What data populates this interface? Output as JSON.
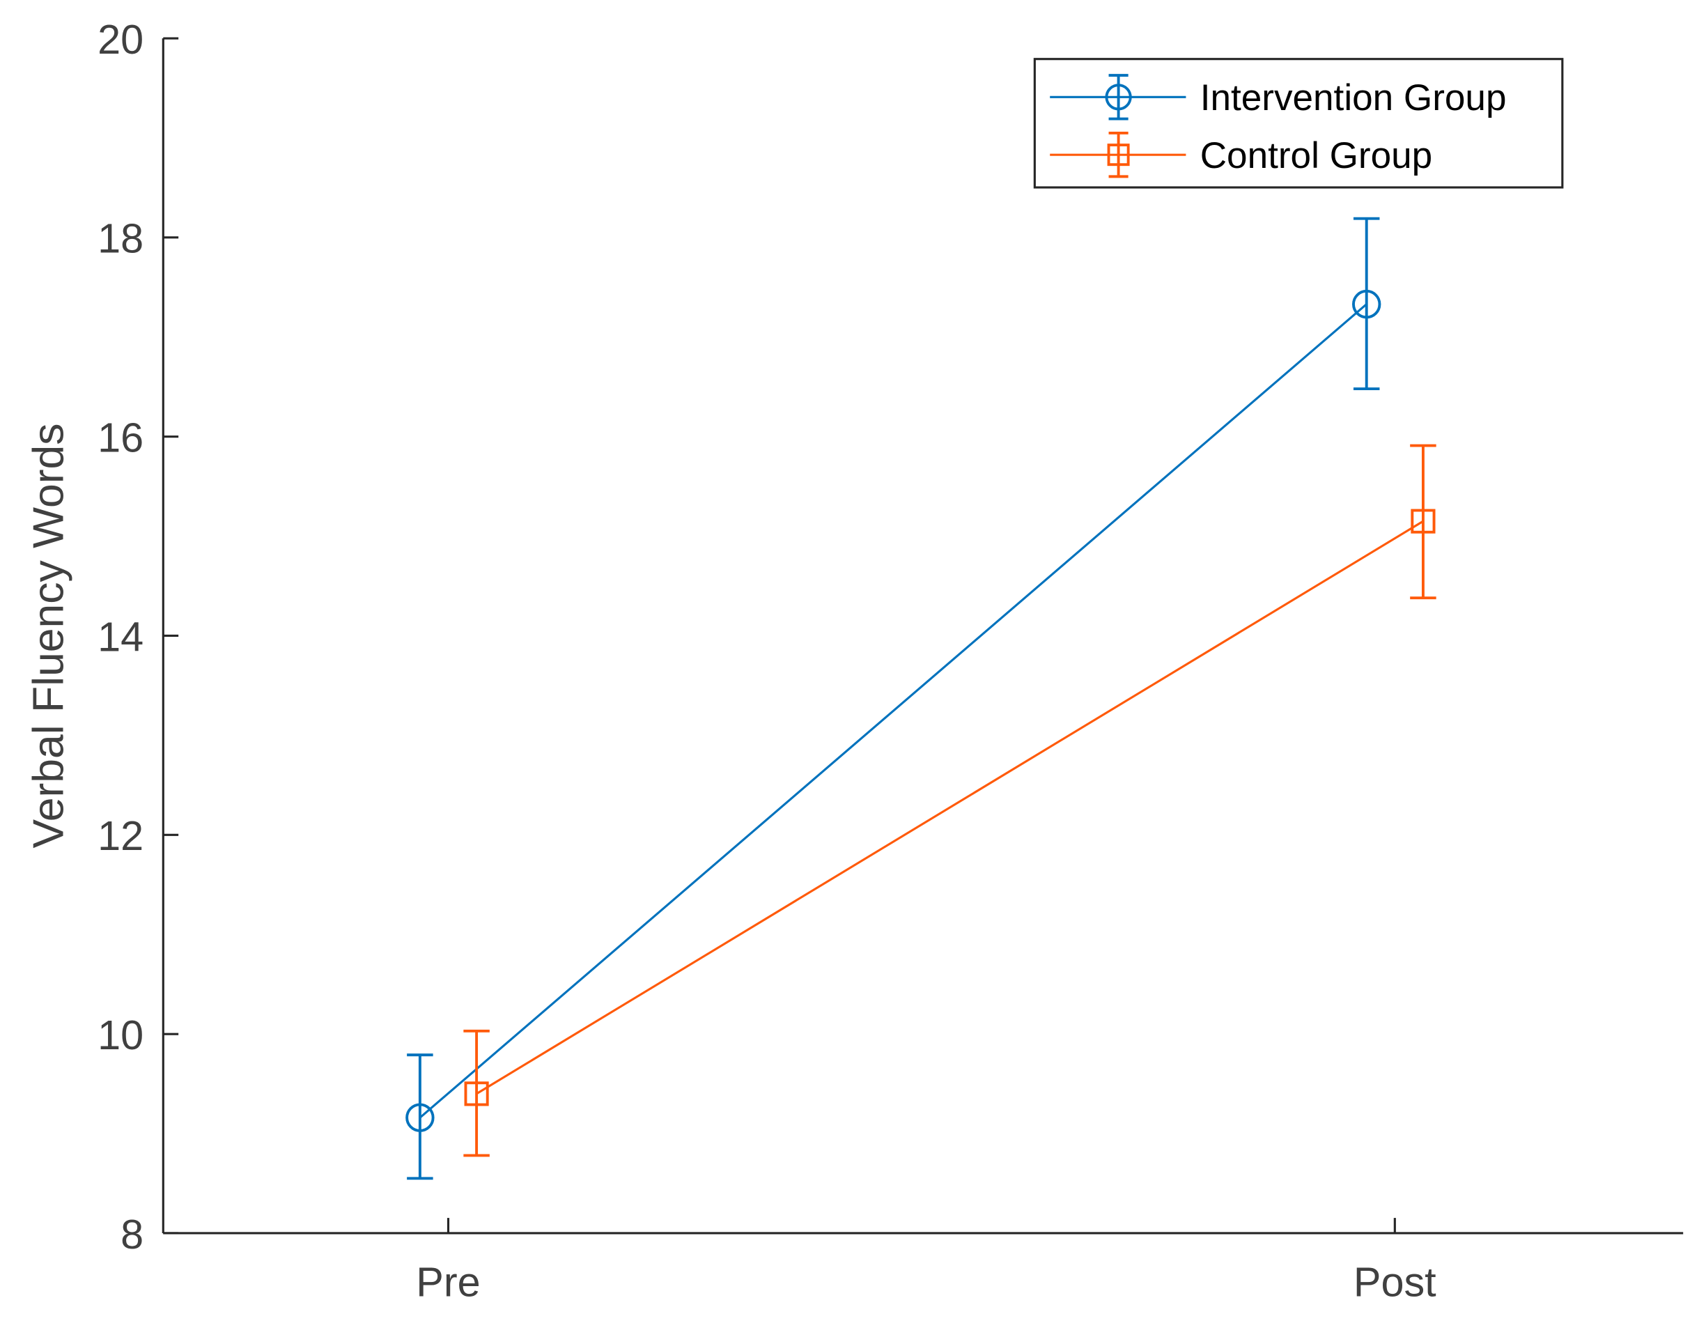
{
  "chart_data": {
    "type": "line",
    "title": "",
    "xlabel": "",
    "ylabel": "Verbal Fluency Words",
    "categories": [
      "Pre",
      "Post"
    ],
    "ylim": [
      8,
      20
    ],
    "yticks": [
      8,
      10,
      12,
      14,
      16,
      18,
      20
    ],
    "grid": false,
    "legend_position": "upper right",
    "series": [
      {
        "name": "Intervention Group",
        "color": "#0072BD",
        "marker": "circle",
        "values": [
          9.16,
          17.33
        ],
        "error_lower": [
          8.55,
          16.48
        ],
        "error_upper": [
          9.79,
          18.19
        ]
      },
      {
        "name": "Control Group",
        "color": "#FF5A0A",
        "marker": "square",
        "values": [
          9.4,
          15.15
        ],
        "error_lower": [
          8.78,
          14.38
        ],
        "error_upper": [
          10.03,
          15.91
        ]
      }
    ]
  },
  "axis_color": "#262626",
  "text_color": "#404040"
}
